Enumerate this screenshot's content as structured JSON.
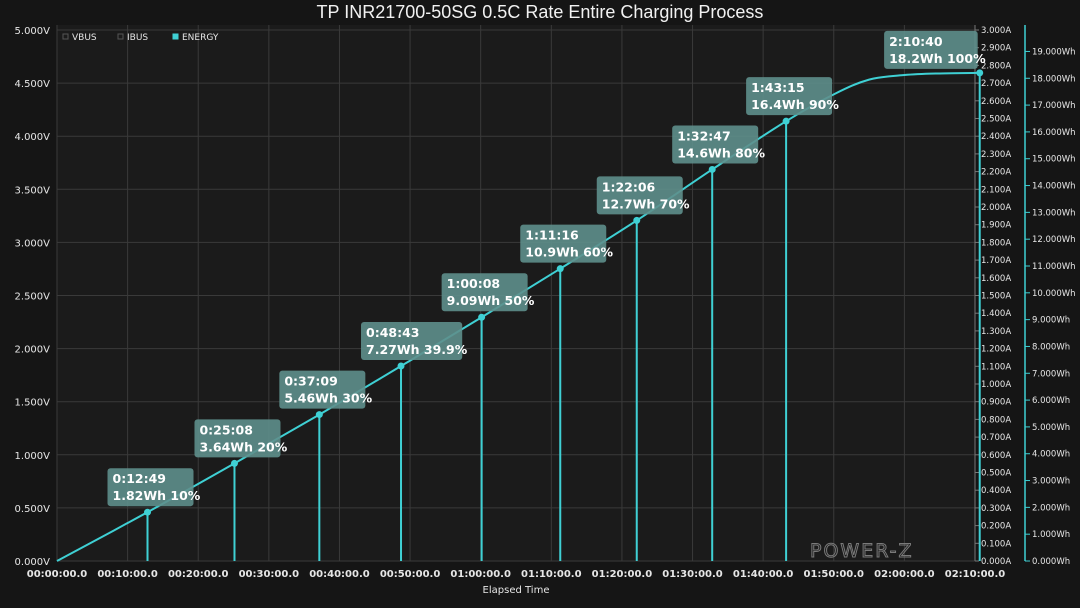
{
  "chart_data": {
    "type": "line",
    "title": "TP INR21700-50SG 0.5C Rate Entire Charging Process",
    "xlabel": "Elapsed Time",
    "x_ticks": [
      "00:00:00.0",
      "00:10:00.0",
      "00:20:00.0",
      "00:30:00.0",
      "00:40:00.0",
      "00:50:00.0",
      "01:00:00.0",
      "01:10:00.0",
      "01:20:00.0",
      "01:30:00.0",
      "01:40:00.0",
      "01:50:00.0",
      "02:00:00.0",
      "02:10:00.0"
    ],
    "xlim_seconds": [
      0,
      7800
    ],
    "y_left": {
      "ticks": [
        "0.000V",
        "0.500V",
        "1.000V",
        "1.500V",
        "2.000V",
        "2.500V",
        "3.000V",
        "3.500V",
        "4.000V",
        "4.500V",
        "5.000V"
      ],
      "lim": [
        0,
        5
      ]
    },
    "y_mid": {
      "ticks": [
        "0.000A",
        "0.100A",
        "0.200A",
        "0.300A",
        "0.400A",
        "0.500A",
        "0.600A",
        "0.700A",
        "0.800A",
        "0.900A",
        "1.000A",
        "1.100A",
        "1.200A",
        "1.300A",
        "1.400A",
        "1.500A",
        "1.600A",
        "1.700A",
        "1.800A",
        "1.900A",
        "2.000A",
        "2.100A",
        "2.200A",
        "2.300A",
        "2.400A",
        "2.500A",
        "2.600A",
        "2.700A",
        "2.800A",
        "2.900A",
        "3.000A"
      ],
      "lim": [
        0,
        3
      ]
    },
    "y_right": {
      "ticks": [
        "0.000Wh",
        "1.000Wh",
        "2.000Wh",
        "3.000Wh",
        "4.000Wh",
        "5.000Wh",
        "6.000Wh",
        "7.000Wh",
        "8.000Wh",
        "9.000Wh",
        "10.000Wh",
        "11.000Wh",
        "12.000Wh",
        "13.000Wh",
        "14.000Wh",
        "15.000Wh",
        "16.000Wh",
        "17.000Wh",
        "18.000Wh",
        "19.000Wh"
      ],
      "lim": [
        0,
        19.8
      ]
    },
    "legend": [
      "VBUS",
      "IBUS",
      "ENERGY"
    ],
    "legend_position": "top-left",
    "series": [
      {
        "name": "ENERGY",
        "color": "#3fd0d4",
        "points": [
          [
            0,
            0
          ],
          [
            769,
            1.82
          ],
          [
            1508,
            3.64
          ],
          [
            2229,
            5.46
          ],
          [
            2923,
            7.27
          ],
          [
            3608,
            9.09
          ],
          [
            4276,
            10.9
          ],
          [
            4926,
            12.7
          ],
          [
            5567,
            14.6
          ],
          [
            6195,
            16.4
          ],
          [
            6600,
            17.4
          ],
          [
            6900,
            17.95
          ],
          [
            7200,
            18.12
          ],
          [
            7500,
            18.18
          ],
          [
            7840,
            18.2
          ]
        ]
      }
    ],
    "annotations": [
      {
        "x": 769,
        "y": 1.82,
        "time": "0:12:49",
        "value": "1.82Wh 10%"
      },
      {
        "x": 1508,
        "y": 3.64,
        "time": "0:25:08",
        "value": "3.64Wh 20%"
      },
      {
        "x": 2229,
        "y": 5.46,
        "time": "0:37:09",
        "value": "5.46Wh 30%"
      },
      {
        "x": 2923,
        "y": 7.27,
        "time": "0:48:43",
        "value": "7.27Wh 39.9%"
      },
      {
        "x": 3608,
        "y": 9.09,
        "time": "1:00:08",
        "value": "9.09Wh 50%"
      },
      {
        "x": 4276,
        "y": 10.9,
        "time": "1:11:16",
        "value": "10.9Wh 60%"
      },
      {
        "x": 4926,
        "y": 12.7,
        "time": "1:22:06",
        "value": "12.7Wh 70%"
      },
      {
        "x": 5567,
        "y": 14.6,
        "time": "1:32:47",
        "value": "14.6Wh 80%"
      },
      {
        "x": 6195,
        "y": 16.4,
        "time": "1:43:15",
        "value": "16.4Wh 90%"
      },
      {
        "x": 7840,
        "y": 18.2,
        "time": "2:10:40",
        "value": "18.2Wh 100%"
      }
    ],
    "grid": true,
    "watermark": "POWER-Z",
    "colors": {
      "background": "#151515",
      "plot": "#1b1b1b",
      "grid": "#3a3a3a",
      "energy": "#3fd0d4",
      "label_bg": "#5e8f8c"
    }
  }
}
